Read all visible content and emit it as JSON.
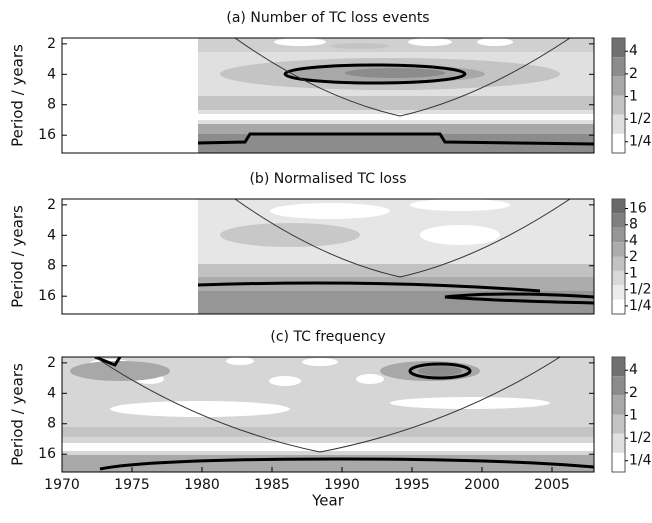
{
  "chart_data": [
    {
      "type": "contour",
      "title": "(a) Number of TC loss events",
      "ylabel": "Period / years",
      "xlim": [
        1970,
        2008
      ],
      "ylim": [
        1.75,
        24
      ],
      "yticks": [
        2,
        4,
        8,
        16
      ],
      "log_y": true,
      "invert_y": true,
      "colorbar": {
        "lim": [
          0.177,
          6
        ],
        "colors": [
          "#707070",
          "#8c8c8c",
          "#a8a8a8",
          "#c4c4c4",
          "#e0e0e0",
          "#ffffff"
        ],
        "ticks": [
          4,
          2,
          1,
          {
            "value": 0.5,
            "label": "1/2"
          },
          {
            "value": 0.25,
            "label": "1/4"
          }
        ]
      }
    },
    {
      "type": "contour",
      "title": "(b) Normalised TC loss",
      "ylabel": "Period / years",
      "xlim": [
        1970,
        2008
      ],
      "ylim": [
        1.75,
        24
      ],
      "yticks": [
        2,
        4,
        8,
        16
      ],
      "log_y": true,
      "invert_y": true,
      "colorbar": {
        "lim": [
          0.177,
          24
        ],
        "colors": [
          "#6a6a6a",
          "#808080",
          "#969696",
          "#acacac",
          "#c2c2c2",
          "#d8d8d8",
          "#ececec",
          "#ffffff"
        ],
        "ticks": [
          16,
          8,
          4,
          2,
          1,
          {
            "value": 0.5,
            "label": "1/2"
          },
          {
            "value": 0.25,
            "label": "1/4"
          }
        ]
      }
    },
    {
      "type": "contour",
      "title": "(c) TC frequency",
      "ylabel": "Period / years",
      "xlabel": "Year",
      "xlim": [
        1970,
        2008
      ],
      "xticks": [
        1970,
        1975,
        1980,
        1985,
        1990,
        1995,
        2000,
        2005
      ],
      "ylim": [
        1.75,
        24
      ],
      "yticks": [
        2,
        4,
        8,
        16
      ],
      "log_y": true,
      "invert_y": true,
      "colorbar": {
        "lim": [
          0.177,
          6
        ],
        "colors": [
          "#707070",
          "#8c8c8c",
          "#a8a8a8",
          "#c4c4c4",
          "#e0e0e0",
          "#ffffff"
        ],
        "ticks": [
          4,
          2,
          1,
          {
            "value": 0.5,
            "label": "1/2"
          },
          {
            "value": 0.25,
            "label": "1/4"
          }
        ]
      }
    }
  ]
}
